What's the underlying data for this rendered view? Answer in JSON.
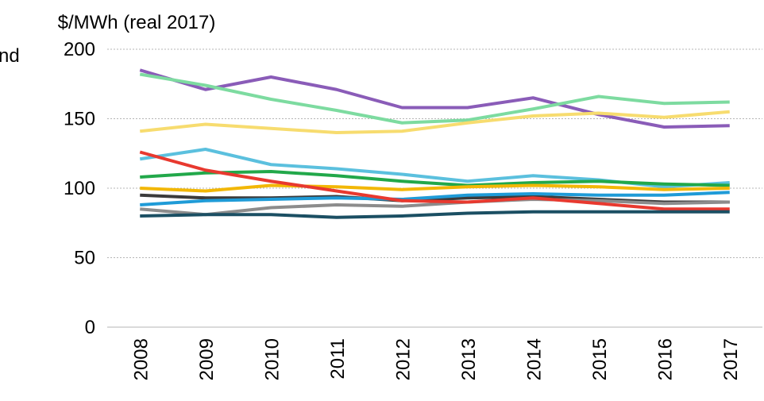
{
  "chart_data": {
    "type": "line",
    "y_label": "$/MWh (real 2017)",
    "annotation": "nd",
    "categories": [
      "2008",
      "2009",
      "2010",
      "2011",
      "2012",
      "2013",
      "2014",
      "2015",
      "2016",
      "2017"
    ],
    "ylim": [
      0,
      200
    ],
    "yticks": [
      0,
      50,
      100,
      150,
      200
    ],
    "grid": true,
    "series": [
      {
        "color": "#8a5cb8",
        "values": [
          185,
          171,
          180,
          171,
          158,
          158,
          165,
          153,
          144,
          145
        ]
      },
      {
        "color": "#7ddba0",
        "values": [
          182,
          174,
          164,
          156,
          147,
          149,
          157,
          166,
          161,
          162
        ]
      },
      {
        "color": "#f7dc6f",
        "values": [
          141,
          146,
          143,
          140,
          141,
          147,
          152,
          154,
          151,
          155
        ]
      },
      {
        "color": "#5bc0de",
        "values": [
          121,
          128,
          117,
          114,
          110,
          105,
          109,
          106,
          101,
          104
        ]
      },
      {
        "color": "#22a84a",
        "values": [
          108,
          111,
          112,
          109,
          105,
          102,
          104,
          105,
          103,
          102
        ]
      },
      {
        "color": "#f2b705",
        "values": [
          100,
          98,
          102,
          101,
          99,
          101,
          102,
          101,
          99,
          100
        ]
      },
      {
        "color": "#3b3b3b",
        "values": [
          95,
          93,
          93,
          94,
          91,
          93,
          94,
          92,
          90,
          90
        ]
      },
      {
        "color": "#1f9bd7",
        "values": [
          88,
          91,
          92,
          93,
          92,
          95,
          96,
          95,
          95,
          97
        ]
      },
      {
        "color": "#8c8c8c",
        "values": [
          85,
          81,
          86,
          88,
          87,
          90,
          92,
          91,
          89,
          90
        ]
      },
      {
        "color": "#e8392f",
        "values": [
          126,
          113,
          105,
          98,
          91,
          90,
          93,
          89,
          85,
          85
        ]
      },
      {
        "color": "#1b4f63",
        "values": [
          80,
          81,
          81,
          79,
          80,
          82,
          83,
          83,
          83,
          83
        ]
      }
    ]
  }
}
